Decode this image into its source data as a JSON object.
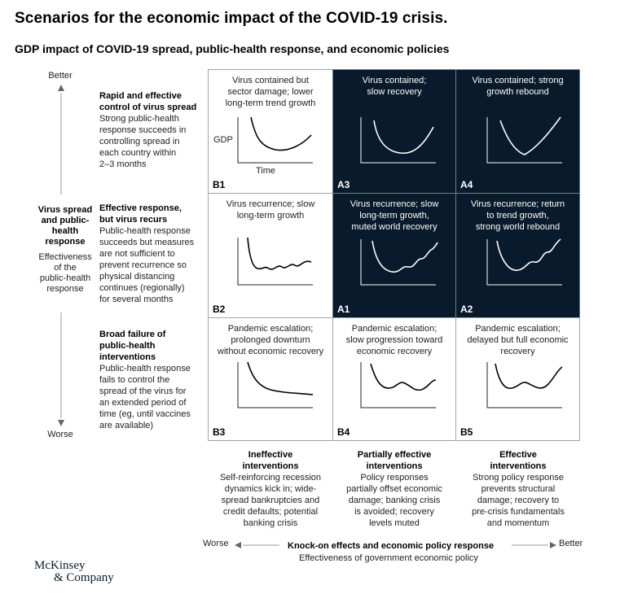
{
  "title": "Scenarios for the economic impact of the COVID-19 crisis.",
  "subtitle": "GDP impact of COVID-19 spread, public-health response, and economic policies",
  "y_axis": {
    "top": "Better",
    "bottom": "Worse",
    "label_bold": [
      "Virus spread",
      "and public-",
      "health",
      "response"
    ],
    "label_sub": [
      "Effectiveness",
      "of the",
      "public-health",
      "response"
    ]
  },
  "rows": [
    {
      "heading": [
        "Rapid and effective",
        "control of virus spread"
      ],
      "body": [
        "Strong public-health",
        "response succeeds in",
        "controlling spread in",
        "each country within",
        "2–3 months"
      ]
    },
    {
      "heading": [
        "Effective response,",
        "but virus recurs"
      ],
      "body": [
        "Public-health response",
        "succeeds but measures",
        "are not sufficient to",
        "prevent recurrence so",
        "physical distancing",
        "continues (regionally)",
        "for several months"
      ]
    },
    {
      "heading": [
        "Broad failure of",
        "public-health",
        "interventions"
      ],
      "body": [
        "Public-health response",
        "fails to control the",
        "spread of the virus for",
        "an extended period of",
        "time (eg, until vaccines",
        "are available)"
      ]
    }
  ],
  "cells": [
    {
      "id": "B1",
      "lines": [
        "Virus contained but",
        "sector damage; lower",
        "long-term trend growth"
      ],
      "gdp_label": "GDP",
      "time_label": "Time"
    },
    {
      "id": "A3",
      "lines": [
        "Virus contained;",
        "slow recovery"
      ]
    },
    {
      "id": "A4",
      "lines": [
        "Virus contained; strong",
        "growth rebound"
      ]
    },
    {
      "id": "B2",
      "lines": [
        "Virus recurrence; slow",
        "long-term growth"
      ]
    },
    {
      "id": "A1",
      "lines": [
        "Virus recurrence; slow",
        "long-term growth,",
        "muted world recovery"
      ]
    },
    {
      "id": "A2",
      "lines": [
        "Virus recurrence; return",
        "to trend growth,",
        "strong world rebound"
      ]
    },
    {
      "id": "B3",
      "lines": [
        "Pandemic escalation;",
        "prolonged downturn",
        "without economic recovery"
      ]
    },
    {
      "id": "B4",
      "lines": [
        "Pandemic escalation;",
        "slow progression toward",
        "economic recovery"
      ]
    },
    {
      "id": "B5",
      "lines": [
        "Pandemic escalation;",
        "delayed but full economic",
        "recovery"
      ]
    }
  ],
  "columns": [
    {
      "heading": [
        "Ineffective",
        "interventions"
      ],
      "body": [
        "Self-reinforcing recession",
        "dynamics kick in; wide-",
        "spread bankruptcies and",
        "credit defaults; potential",
        "banking crisis"
      ]
    },
    {
      "heading": [
        "Partially effective",
        "interventions"
      ],
      "body": [
        "Policy responses",
        "partially offset economic",
        "damage; banking crisis",
        "is avoided; recovery",
        "levels muted"
      ]
    },
    {
      "heading": [
        "Effective",
        "interventions"
      ],
      "body": [
        "Strong policy response",
        "prevents structural",
        "damage; recovery to",
        "pre-crisis fundamentals",
        "and momentum"
      ]
    }
  ],
  "x_axis": {
    "left": "Worse",
    "right": "Better",
    "label_bold": "Knock-on effects and economic policy response",
    "label_sub": "Effectiveness of government economic policy"
  },
  "logo": [
    "McKinsey",
    "& Company"
  ],
  "colors": {
    "dark_cell": "#081a2b",
    "light_cell": "#ffffff",
    "cell_border": "#9aa6ad"
  }
}
